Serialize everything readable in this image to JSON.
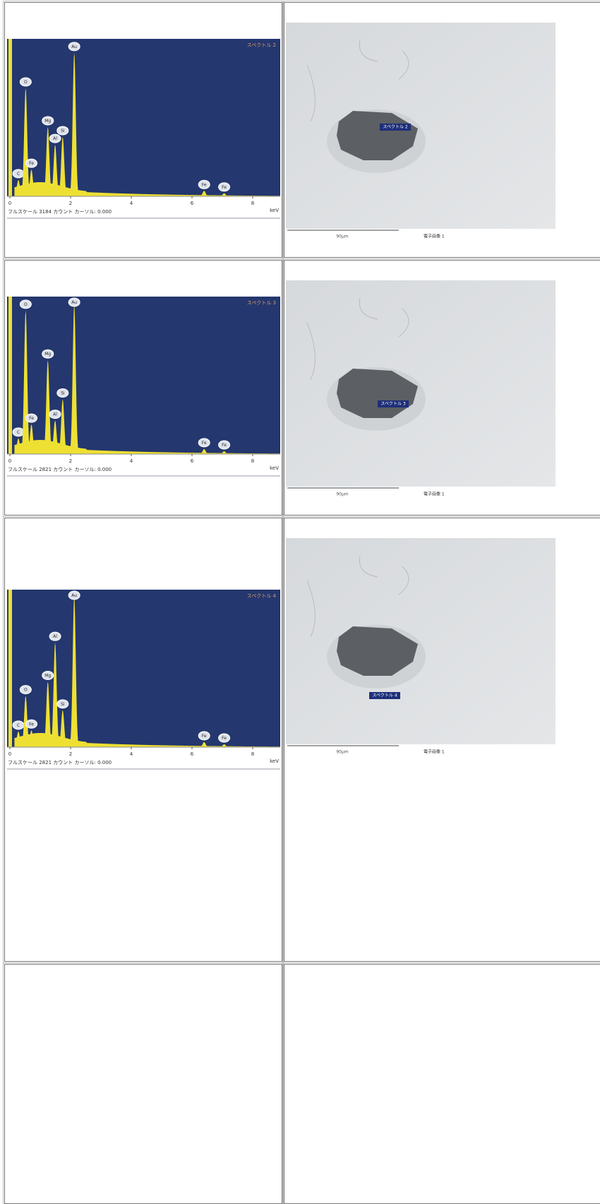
{
  "rows": [
    {
      "spectrum": {
        "type": "line",
        "title": "スペクトル 2",
        "xlim": [
          0,
          8.9
        ],
        "xticks": [
          0,
          2,
          4,
          6,
          8
        ],
        "x_unit": "keV",
        "ylim": [
          0,
          3184
        ],
        "footer": "フルスケール 3184 カウント カーソル: 0.000",
        "peaks": [
          {
            "element": "C",
            "kev": 0.28,
            "counts": 330
          },
          {
            "element": "O",
            "kev": 0.52,
            "counts": 2185
          },
          {
            "element": "Fe",
            "kev": 0.71,
            "counts": 540
          },
          {
            "element": "Mg",
            "kev": 1.25,
            "counts": 1400
          },
          {
            "element": "Al",
            "kev": 1.49,
            "counts": 1040
          },
          {
            "element": "Si",
            "kev": 1.74,
            "counts": 1200
          },
          {
            "element": "Au",
            "kev": 2.12,
            "counts": 2900
          },
          {
            "element": "Fe",
            "kev": 6.4,
            "counts": 110
          },
          {
            "element": "Fe",
            "kev": 7.06,
            "counts": 60
          }
        ]
      },
      "image": {
        "marker": "スペクトル 2",
        "scale": "90μm",
        "caption": "電子画像 1"
      }
    },
    {
      "spectrum": {
        "type": "line",
        "title": "スペクトル 3",
        "xlim": [
          0,
          8.9
        ],
        "xticks": [
          0,
          2,
          4,
          6,
          8
        ],
        "x_unit": "keV",
        "ylim": [
          0,
          2821
        ],
        "footer": "フルスケール 2821 カウント カーソル: 0.000",
        "peaks": [
          {
            "element": "C",
            "kev": 0.28,
            "counts": 280
          },
          {
            "element": "O",
            "kev": 0.52,
            "counts": 2570
          },
          {
            "element": "Fe",
            "kev": 0.71,
            "counts": 530
          },
          {
            "element": "Mg",
            "kev": 1.25,
            "counts": 1680
          },
          {
            "element": "Al",
            "kev": 1.49,
            "counts": 600
          },
          {
            "element": "Si",
            "kev": 1.74,
            "counts": 980
          },
          {
            "element": "Au",
            "kev": 2.12,
            "counts": 2670
          },
          {
            "element": "Fe",
            "kev": 6.4,
            "counts": 90
          },
          {
            "element": "Fe",
            "kev": 7.06,
            "counts": 50
          }
        ]
      },
      "image": {
        "marker": "スペクトル 3",
        "scale": "90μm",
        "caption": "電子画像 1"
      }
    },
    {
      "spectrum": {
        "type": "line",
        "title": "スペクトル 4",
        "xlim": [
          0,
          8.9
        ],
        "xticks": [
          0,
          2,
          4,
          6,
          8
        ],
        "x_unit": "keV",
        "ylim": [
          0,
          2821
        ],
        "footer": "フルスケール 2821 カウント カーソル: 0.000",
        "peaks": [
          {
            "element": "C",
            "kev": 0.28,
            "counts": 280
          },
          {
            "element": "O",
            "kev": 0.52,
            "counts": 915
          },
          {
            "element": "Fe",
            "kev": 0.71,
            "counts": 300
          },
          {
            "element": "Mg",
            "kev": 1.25,
            "counts": 1170
          },
          {
            "element": "Al",
            "kev": 1.49,
            "counts": 1870
          },
          {
            "element": "Si",
            "kev": 1.74,
            "counts": 660
          },
          {
            "element": "Au",
            "kev": 2.12,
            "counts": 2700
          },
          {
            "element": "Fe",
            "kev": 6.4,
            "counts": 90
          },
          {
            "element": "Fe",
            "kev": 7.06,
            "counts": 50
          }
        ]
      },
      "image": {
        "marker": "スペクトル 4",
        "scale": "90μm",
        "caption": "電子画像 1"
      }
    }
  ]
}
